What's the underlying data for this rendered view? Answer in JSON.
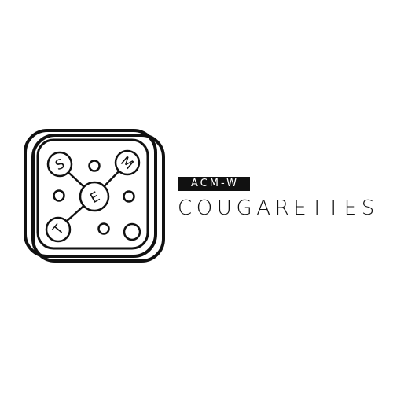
{
  "logo": {
    "badge_text": "ACM-W",
    "name_text": "COUGARETTES",
    "emblem_letters": [
      "S",
      "T",
      "E",
      "M"
    ],
    "colors": {
      "ink": "#111111",
      "background": "#ffffff",
      "badge_text": "#ffffff"
    }
  }
}
